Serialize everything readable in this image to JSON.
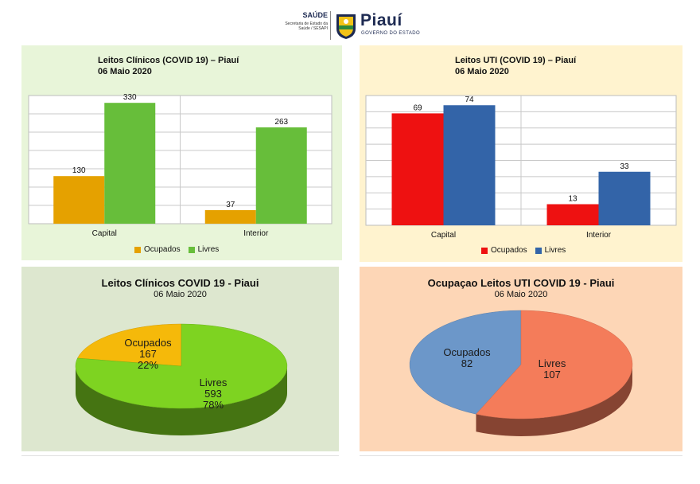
{
  "header": {
    "saude": "SAÚDE",
    "secretaria": "Secretaria de Estado da Saúde / SESAPI",
    "piaui": "Piauí",
    "governo": "GOVERNO DO ESTADO"
  },
  "chart_data": [
    {
      "type": "bar",
      "title": "Leitos Clínicos (COVID 19) – Piauí",
      "subtitle": "06 Maio 2020",
      "categories": [
        "Capital",
        "Interior"
      ],
      "series": [
        {
          "name": "Ocupados",
          "values": [
            130,
            37
          ],
          "color": "#e5a100"
        },
        {
          "name": "Livres",
          "values": [
            330,
            263
          ],
          "color": "#67be3a"
        }
      ],
      "ylim": [
        0,
        350
      ],
      "grid": true,
      "legend": "bottom"
    },
    {
      "type": "bar",
      "title": "Leitos UTI (COVID 19) – Piauí",
      "subtitle": "06 Maio 2020",
      "categories": [
        "Capital",
        "Interior"
      ],
      "series": [
        {
          "name": "Ocupados",
          "values": [
            69,
            13
          ],
          "color": "#ee1111"
        },
        {
          "name": "Livres",
          "values": [
            74,
            33
          ],
          "color": "#3364a8"
        }
      ],
      "ylim": [
        0,
        80
      ],
      "grid": true,
      "legend": "bottom"
    },
    {
      "type": "pie",
      "title": "Leitos Clínicos COVID 19 - Piaui",
      "subtitle": "06 Maio 2020",
      "slices": [
        {
          "name": "Ocupados",
          "value": 167,
          "percent": "22%",
          "color": "#f5b90a"
        },
        {
          "name": "Livres",
          "value": 593,
          "percent": "78%",
          "color": "#7ed321"
        }
      ]
    },
    {
      "type": "pie",
      "title": "Ocupaçao Leitos UTI COVID 19 - Piaui",
      "subtitle": "06 Maio 2020",
      "slices": [
        {
          "name": "Ocupados",
          "value": 82,
          "color": "#6c97c9"
        },
        {
          "name": "Livres",
          "value": 107,
          "color": "#f47c5a"
        }
      ]
    }
  ]
}
